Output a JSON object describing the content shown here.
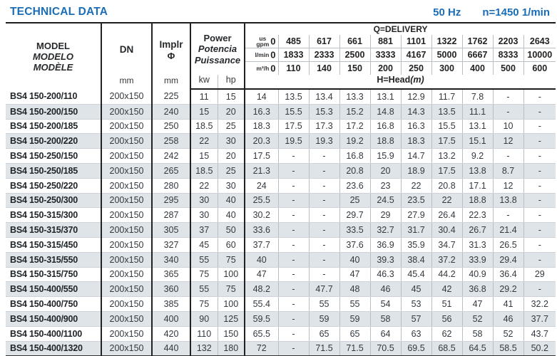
{
  "title": "TECHNICAL DATA",
  "frequency": "50 Hz",
  "speed": "n=1450 1/min",
  "colors": {
    "accent_blue": "#1a6db6",
    "row_stripe": "#dfe4e9",
    "dark_border": "#222222",
    "light_border": "#b7bec4"
  },
  "header": {
    "model_lines": [
      "MODEL",
      "MODELO",
      "MODÈLE"
    ],
    "dn_label": "DN",
    "dn_unit": "mm",
    "implr_label": "Implr",
    "implr_symbol": "Φ",
    "implr_unit": "mm",
    "power_lines": [
      "Power",
      "Potencia",
      "Puissance"
    ],
    "power_unit_kw": "kw",
    "power_unit_hp": "hp",
    "delivery_title": "Q=DELIVERY",
    "head_title": "H=Head",
    "head_unit": "(m)",
    "unit_rows": [
      {
        "label_lines": [
          "us",
          "gpm"
        ],
        "zero": "0",
        "values": [
          "485",
          "617",
          "661",
          "881",
          "1101",
          "1322",
          "1762",
          "2203",
          "2643"
        ]
      },
      {
        "label_lines": [
          "l/min"
        ],
        "zero": "0",
        "values": [
          "1833",
          "2333",
          "2500",
          "3333",
          "4167",
          "5000",
          "6667",
          "8333",
          "10000"
        ]
      },
      {
        "label_lines": [
          "m³/h"
        ],
        "zero": "0",
        "values": [
          "110",
          "140",
          "150",
          "200",
          "250",
          "300",
          "400",
          "500",
          "600"
        ]
      }
    ]
  },
  "rows": [
    {
      "model": "BS4 150-200/110",
      "dn": "200x150",
      "implr": "225",
      "kw": "11",
      "hp": "15",
      "head": [
        "14",
        "13.5",
        "13.4",
        "13.3",
        "13.1",
        "12.9",
        "11.7",
        "7.8",
        "-",
        "-"
      ]
    },
    {
      "model": "BS4 150-200/150",
      "dn": "200x150",
      "implr": "240",
      "kw": "15",
      "hp": "20",
      "head": [
        "16.3",
        "15.5",
        "15.3",
        "15.2",
        "14.8",
        "14.3",
        "13.5",
        "11.1",
        "-",
        "-"
      ]
    },
    {
      "model": "BS4 150-200/185",
      "dn": "200x150",
      "implr": "250",
      "kw": "18.5",
      "hp": "25",
      "head": [
        "18.3",
        "17.5",
        "17.3",
        "17.2",
        "16.8",
        "16.3",
        "15.5",
        "13.1",
        "10",
        "-"
      ]
    },
    {
      "model": "BS4 150-200/220",
      "dn": "200x150",
      "implr": "258",
      "kw": "22",
      "hp": "30",
      "head": [
        "20.3",
        "19.5",
        "19.3",
        "19.2",
        "18.8",
        "18.3",
        "17.5",
        "15.1",
        "12",
        "-"
      ]
    },
    {
      "model": "BS4 150-250/150",
      "dn": "200x150",
      "implr": "242",
      "kw": "15",
      "hp": "20",
      "head": [
        "17.5",
        "-",
        "-",
        "16.8",
        "15.9",
        "14.7",
        "13.2",
        "9.2",
        "-",
        "-"
      ]
    },
    {
      "model": "BS4 150-250/185",
      "dn": "200x150",
      "implr": "265",
      "kw": "18.5",
      "hp": "25",
      "head": [
        "21.3",
        "-",
        "-",
        "20.8",
        "20",
        "18.9",
        "17.5",
        "13.8",
        "8.7",
        "-"
      ]
    },
    {
      "model": "BS4 150-250/220",
      "dn": "200x150",
      "implr": "280",
      "kw": "22",
      "hp": "30",
      "head": [
        "24",
        "-",
        "-",
        "23.6",
        "23",
        "22",
        "20.8",
        "17.1",
        "12",
        "-"
      ]
    },
    {
      "model": "BS4 150-250/300",
      "dn": "200x150",
      "implr": "295",
      "kw": "30",
      "hp": "40",
      "head": [
        "25.5",
        "-",
        "-",
        "25",
        "24.5",
        "23.5",
        "22",
        "18.8",
        "13.8",
        "-"
      ]
    },
    {
      "model": "BS4 150-315/300",
      "dn": "200x150",
      "implr": "287",
      "kw": "30",
      "hp": "40",
      "head": [
        "30.2",
        "-",
        "-",
        "29.7",
        "29",
        "27.9",
        "26.4",
        "22.3",
        "-",
        "-"
      ]
    },
    {
      "model": "BS4 150-315/370",
      "dn": "200x150",
      "implr": "305",
      "kw": "37",
      "hp": "50",
      "head": [
        "33.6",
        "-",
        "-",
        "33.5",
        "32.7",
        "31.7",
        "30.4",
        "26.7",
        "21.4",
        "-"
      ]
    },
    {
      "model": "BS4 150-315/450",
      "dn": "200x150",
      "implr": "327",
      "kw": "45",
      "hp": "60",
      "head": [
        "37.7",
        "-",
        "-",
        "37.6",
        "36.9",
        "35.9",
        "34.7",
        "31.3",
        "26.5",
        "-"
      ]
    },
    {
      "model": "BS4 150-315/550",
      "dn": "200x150",
      "implr": "340",
      "kw": "55",
      "hp": "75",
      "head": [
        "40",
        "-",
        "-",
        "40",
        "39.3",
        "38.4",
        "37.2",
        "33.9",
        "29.4",
        "-"
      ]
    },
    {
      "model": "BS4 150-315/750",
      "dn": "200x150",
      "implr": "365",
      "kw": "75",
      "hp": "100",
      "head": [
        "47",
        "-",
        "-",
        "47",
        "46.3",
        "45.4",
        "44.2",
        "40.9",
        "36.4",
        "29"
      ]
    },
    {
      "model": "BS4 150-400/550",
      "dn": "200x150",
      "implr": "360",
      "kw": "55",
      "hp": "75",
      "head": [
        "48.2",
        "-",
        "47.7",
        "48",
        "46",
        "45",
        "42",
        "36.8",
        "29.2",
        "-"
      ]
    },
    {
      "model": "BS4 150-400/750",
      "dn": "200x150",
      "implr": "385",
      "kw": "75",
      "hp": "100",
      "head": [
        "55.4",
        "-",
        "55",
        "55",
        "54",
        "53",
        "51",
        "47",
        "41",
        "32.2"
      ]
    },
    {
      "model": "BS4 150-400/900",
      "dn": "200x150",
      "implr": "400",
      "kw": "90",
      "hp": "125",
      "head": [
        "59.5",
        "-",
        "59",
        "59",
        "58",
        "57",
        "56",
        "52",
        "46",
        "37.7"
      ]
    },
    {
      "model": "BS4 150-400/1100",
      "dn": "200x150",
      "implr": "420",
      "kw": "110",
      "hp": "150",
      "head": [
        "65.5",
        "-",
        "65",
        "65",
        "64",
        "63",
        "62",
        "58",
        "52",
        "43.7"
      ]
    },
    {
      "model": "BS4 150-400/1320",
      "dn": "200x150",
      "implr": "440",
      "kw": "132",
      "hp": "180",
      "head": [
        "72",
        "-",
        "71.5",
        "71.5",
        "70.5",
        "69.5",
        "68.5",
        "64.5",
        "58.5",
        "50.2"
      ]
    }
  ]
}
